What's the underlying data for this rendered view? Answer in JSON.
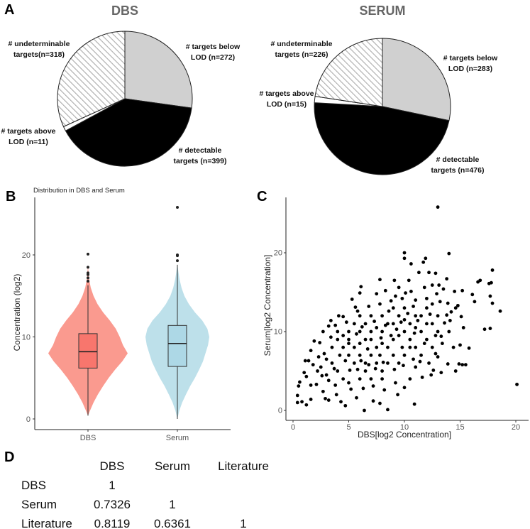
{
  "panels": {
    "a": "A",
    "b": "B",
    "c": "C",
    "d": "D"
  },
  "chart_data": [
    {
      "type": "pie",
      "title": "DBS",
      "slices": [
        {
          "label_l1": "# targets below",
          "label_l2": "LOD (n=272)",
          "value": 272,
          "color": "#d0d0d0"
        },
        {
          "label_l1": "# detectable",
          "label_l2": "targets (n=399)",
          "value": 399,
          "color": "#000000"
        },
        {
          "label_l1": "# targets above",
          "label_l2": "LOD (n=11)",
          "value": 11,
          "color": "#ffffff"
        },
        {
          "label_l1": "# undeterminable",
          "label_l2": "targets(n=318)",
          "value": 318,
          "color": "hatch"
        }
      ]
    },
    {
      "type": "pie",
      "title": "SERUM",
      "slices": [
        {
          "label_l1": "# targets below",
          "label_l2": "LOD (n=283)",
          "value": 283,
          "color": "#d0d0d0"
        },
        {
          "label_l1": "# detectable",
          "label_l2": "targets (n=476)",
          "value": 476,
          "color": "#000000"
        },
        {
          "label_l1": "# targets above",
          "label_l2": "LOD (n=15)",
          "value": 15,
          "color": "#ffffff"
        },
        {
          "label_l1": "# undeterminable",
          "label_l2": "targets (n=226)",
          "value": 226,
          "color": "hatch"
        }
      ]
    },
    {
      "type": "violin",
      "title": "Distribution in DBS and Serum",
      "xlabel": "",
      "ylabel": "Concentration (log2)",
      "ylim": [
        -1,
        27
      ],
      "yticks": [
        "0",
        "10",
        "20"
      ],
      "categories": [
        "DBS",
        "Serum"
      ],
      "series": [
        {
          "name": "DBS",
          "color": "#f8766d",
          "violin_color": "#fa9a8f",
          "box": {
            "q1": 6.2,
            "median": 8.2,
            "q3": 10.4,
            "whisker_low": 0.4,
            "whisker_high": 16.3
          },
          "outliers": [
            16.8,
            17.2,
            17.6,
            17.8,
            18.5,
            20.1
          ],
          "density_y": [
            0.4,
            1,
            2,
            3,
            4,
            5,
            6,
            7,
            8,
            9,
            10,
            11,
            12,
            13,
            14,
            15,
            16,
            17,
            18.6
          ],
          "density_w": [
            0,
            0.05,
            0.14,
            0.25,
            0.38,
            0.52,
            0.68,
            0.86,
            1.0,
            0.88,
            0.8,
            0.7,
            0.55,
            0.38,
            0.24,
            0.14,
            0.07,
            0.03,
            0
          ]
        },
        {
          "name": "Serum",
          "color": "#add8e6",
          "violin_color": "#bde0ea",
          "box": {
            "q1": 6.4,
            "median": 9.2,
            "q3": 11.4,
            "whisker_low": 0.0,
            "whisker_high": 18.8
          },
          "outliers": [
            19.3,
            19.9,
            20.0,
            25.8
          ],
          "density_y": [
            0,
            1,
            2,
            3,
            4,
            5,
            6,
            7,
            8,
            9,
            10,
            11,
            12,
            13,
            14,
            15,
            16,
            17,
            18,
            18.9
          ],
          "density_w": [
            0,
            0.06,
            0.15,
            0.27,
            0.4,
            0.55,
            0.68,
            0.8,
            0.88,
            0.96,
            1.0,
            0.94,
            0.78,
            0.55,
            0.36,
            0.22,
            0.13,
            0.07,
            0.03,
            0
          ]
        }
      ]
    },
    {
      "type": "scatter",
      "xlabel": "DBS[log2 Concentration]",
      "ylabel": "Serum[log2 Concentration]",
      "xlim": [
        -0.6,
        21.2
      ],
      "ylim": [
        -1.3,
        26.5
      ],
      "xticks": [
        "0",
        "5",
        "10",
        "15",
        "20"
      ],
      "yticks": [
        "0",
        "10",
        "20"
      ],
      "points": [
        [
          13.0,
          25.8
        ],
        [
          10.0,
          20.0
        ],
        [
          10.0,
          19.3
        ],
        [
          14.0,
          19.9
        ],
        [
          11.9,
          19.3
        ],
        [
          11.7,
          18.8
        ],
        [
          10.6,
          18.6
        ],
        [
          17.9,
          17.8
        ],
        [
          16.8,
          16.5
        ],
        [
          16.6,
          16.3
        ],
        [
          17.8,
          16.2
        ],
        [
          17.6,
          16.1
        ],
        [
          17.7,
          14.5
        ],
        [
          17.9,
          13.6
        ],
        [
          18.6,
          12.6
        ],
        [
          17.7,
          10.4
        ],
        [
          17.2,
          10.3
        ],
        [
          20.1,
          3.3
        ],
        [
          15.8,
          7.9
        ],
        [
          15.0,
          8.3
        ],
        [
          14.4,
          8.0
        ],
        [
          15.5,
          5.8
        ],
        [
          15.2,
          5.8
        ],
        [
          14.9,
          5.9
        ],
        [
          14.6,
          5.0
        ],
        [
          13.9,
          5.9
        ],
        [
          13.3,
          4.8
        ],
        [
          12.4,
          4.5
        ],
        [
          10.9,
          0.8
        ],
        [
          8.5,
          0.1
        ],
        [
          6.4,
          0.0
        ],
        [
          4.7,
          0.6
        ],
        [
          0.4,
          1.0
        ],
        [
          0.8,
          1.1
        ],
        [
          1.2,
          0.7
        ],
        [
          0.4,
          1.9
        ],
        [
          0.5,
          3.1
        ],
        [
          0.6,
          3.6
        ],
        [
          1.1,
          6.3
        ],
        [
          1.4,
          6.3
        ],
        [
          1.6,
          7.6
        ],
        [
          1.9,
          8.8
        ],
        [
          2.4,
          8.6
        ],
        [
          3.2,
          10.7
        ],
        [
          2.7,
          10.0
        ],
        [
          3.4,
          11.4
        ],
        [
          6.1,
          15.7
        ],
        [
          6.0,
          14.9
        ],
        [
          7.8,
          16.6
        ],
        [
          9.1,
          16.5
        ],
        [
          10.4,
          16.5
        ],
        [
          13.8,
          16.7
        ],
        [
          12.8,
          17.4
        ],
        [
          12.2,
          17.5
        ],
        [
          11.3,
          17.5
        ],
        [
          15.2,
          15.2
        ],
        [
          16.1,
          14.7
        ],
        [
          16.3,
          13.8
        ],
        [
          15.1,
          11.9
        ],
        [
          15.3,
          10.5
        ],
        [
          14.1,
          11.4
        ],
        [
          13.3,
          9.4
        ],
        [
          13.0,
          6.8
        ],
        [
          11.6,
          4.2
        ],
        [
          10.0,
          2.9
        ],
        [
          9.4,
          2.0
        ],
        [
          7.2,
          1.2
        ],
        [
          7.8,
          0.9
        ],
        [
          5.7,
          1.6
        ],
        [
          4.3,
          1.1
        ],
        [
          2.9,
          1.5
        ],
        [
          3.2,
          1.3
        ],
        [
          1.6,
          1.4
        ],
        [
          2.1,
          3.3
        ],
        [
          1.0,
          4.8
        ],
        [
          1.2,
          4.3
        ],
        [
          2.7,
          2.4
        ],
        [
          1.6,
          3.2
        ],
        [
          3.9,
          2.0
        ],
        [
          5.3,
          14.1
        ],
        [
          4.5,
          11.9
        ],
        [
          5.6,
          13.1
        ],
        [
          7.5,
          14.8
        ],
        [
          8.3,
          15.2
        ],
        [
          9.5,
          15.6
        ],
        [
          10.1,
          14.9
        ],
        [
          12.5,
          15.9
        ],
        [
          12.9,
          14.8
        ],
        [
          13.5,
          15.4
        ],
        [
          14.5,
          15.1
        ],
        [
          14.8,
          13.3
        ],
        [
          13.8,
          12.1
        ],
        [
          13.9,
          13.6
        ],
        [
          5,
          9
        ],
        [
          5.5,
          8
        ],
        [
          6,
          10
        ],
        [
          6.5,
          11
        ],
        [
          7,
          9
        ],
        [
          7.5,
          8
        ],
        [
          8,
          10
        ],
        [
          8.5,
          11
        ],
        [
          9,
          9
        ],
        [
          9.5,
          12
        ],
        [
          10,
          10
        ],
        [
          10.5,
          11
        ],
        [
          11,
          12
        ],
        [
          11.5,
          10
        ],
        [
          12,
          13
        ],
        [
          12.5,
          11
        ],
        [
          7,
          7
        ],
        [
          7.5,
          6
        ],
        [
          8,
          5
        ],
        [
          6.5,
          6
        ],
        [
          6,
          7
        ],
        [
          5.5,
          6
        ],
        [
          5,
          7
        ],
        [
          4.5,
          8
        ],
        [
          4,
          9
        ],
        [
          3.5,
          6
        ],
        [
          3,
          6.5
        ],
        [
          3,
          4.5
        ],
        [
          2.5,
          5.5
        ],
        [
          4,
          5
        ],
        [
          4.5,
          4
        ],
        [
          5,
          3.5
        ],
        [
          6,
          4
        ],
        [
          6.5,
          5
        ],
        [
          7,
          4
        ],
        [
          8,
          4
        ],
        [
          8.5,
          6
        ],
        [
          9,
          7
        ],
        [
          9.5,
          6
        ],
        [
          10,
          7
        ],
        [
          10.5,
          8
        ],
        [
          11,
          8
        ],
        [
          11.5,
          7
        ],
        [
          12,
          9
        ],
        [
          12.5,
          8
        ],
        [
          13,
          10
        ],
        [
          13,
          12
        ],
        [
          11,
          14
        ],
        [
          10,
          13
        ],
        [
          9,
          13
        ],
        [
          8,
          12
        ],
        [
          7,
          12
        ],
        [
          6,
          12
        ],
        [
          5,
          10
        ],
        [
          4,
          10
        ],
        [
          4.5,
          9.5
        ],
        [
          5.5,
          11
        ],
        [
          6.5,
          9
        ],
        [
          7.5,
          10.5
        ],
        [
          8.5,
          8
        ],
        [
          9.5,
          9.5
        ],
        [
          10.5,
          9
        ],
        [
          11.5,
          12
        ],
        [
          12,
          11
        ],
        [
          12.5,
          13.5
        ],
        [
          11,
          10.5
        ],
        [
          10,
          11.5
        ],
        [
          9,
          11
        ],
        [
          8,
          8.5
        ],
        [
          7,
          10
        ],
        [
          6,
          8.5
        ],
        [
          5,
          8.5
        ],
        [
          3.5,
          8
        ],
        [
          2.8,
          7.2
        ],
        [
          2.2,
          5
        ],
        [
          3.2,
          3.8
        ],
        [
          3.8,
          3.2
        ],
        [
          5.2,
          2.7
        ],
        [
          6.3,
          2.8
        ],
        [
          7.2,
          3.1
        ],
        [
          8.2,
          2.6
        ],
        [
          9.2,
          3.5
        ],
        [
          10.5,
          4
        ],
        [
          11,
          5.5
        ],
        [
          12.2,
          6
        ],
        [
          12.8,
          7.2
        ],
        [
          13.4,
          8.5
        ],
        [
          14,
          10
        ],
        [
          14.2,
          12.5
        ],
        [
          13.2,
          13.8
        ],
        [
          12,
          14.2
        ],
        [
          10.8,
          13.2
        ],
        [
          9.8,
          14.2
        ],
        [
          8.8,
          13.9
        ],
        [
          7.8,
          13.5
        ],
        [
          6.8,
          13.2
        ],
        [
          5.8,
          12.6
        ],
        [
          4.8,
          11.2
        ],
        [
          3.8,
          10.8
        ],
        [
          4.2,
          7
        ],
        [
          5.8,
          5.2
        ],
        [
          6.8,
          5.8
        ],
        [
          7.8,
          7
        ],
        [
          8.8,
          9.5
        ],
        [
          9.8,
          8
        ],
        [
          10.8,
          6.5
        ],
        [
          11.8,
          8.5
        ],
        [
          12.8,
          9.5
        ],
        [
          7.3,
          11.3
        ],
        [
          8.3,
          10.8
        ],
        [
          9.3,
          10.3
        ],
        [
          10.3,
          12.3
        ],
        [
          6.7,
          7.8
        ],
        [
          5.7,
          9.7
        ],
        [
          4.7,
          6.3
        ],
        [
          3.7,
          5.3
        ],
        [
          8.6,
          12.6
        ],
        [
          9.7,
          11.2
        ],
        [
          11.2,
          11.4
        ],
        [
          7.9,
          9.2
        ],
        [
          6.2,
          10.6
        ],
        [
          10.9,
          9.8
        ],
        [
          12.3,
          12.2
        ],
        [
          8.1,
          6.1
        ],
        [
          9.1,
          5.2
        ],
        [
          7.4,
          5.3
        ],
        [
          6.1,
          6.3
        ],
        [
          5.1,
          5.1
        ],
        [
          2.6,
          4.4
        ],
        [
          1.8,
          5.8
        ],
        [
          2.3,
          6.8
        ],
        [
          3.4,
          9.3
        ],
        [
          4.1,
          12
        ],
        [
          9.9,
          5.7
        ],
        [
          11.4,
          6.2
        ],
        [
          12.6,
          5.1
        ],
        [
          13.6,
          11.1
        ],
        [
          14.6,
          13
        ],
        [
          13.1,
          15.9
        ],
        [
          11.8,
          15.6
        ],
        [
          10.6,
          15.1
        ],
        [
          9.2,
          14.5
        ]
      ]
    },
    {
      "type": "table",
      "columns": [
        "DBS",
        "Serum",
        "Literature"
      ],
      "rows": [
        {
          "label": "DBS",
          "values": [
            "1",
            "",
            ""
          ]
        },
        {
          "label": "Serum",
          "values": [
            "0.7326",
            "1",
            ""
          ]
        },
        {
          "label": "Literature",
          "values": [
            "0.8119",
            "0.6361",
            "1"
          ]
        }
      ]
    }
  ]
}
